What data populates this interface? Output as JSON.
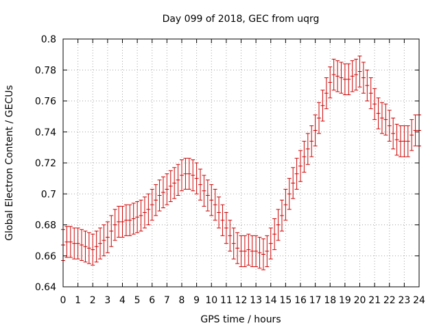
{
  "chart_data": {
    "type": "scatter",
    "title": "Day 099 of 2018, GEC from uqrg",
    "xlabel": "GPS time / hours",
    "ylabel": "Global Electron Content / GECUs",
    "xlim": [
      0,
      24
    ],
    "ylim": [
      0.64,
      0.8
    ],
    "grid": true,
    "x_ticks": [
      0,
      1,
      2,
      3,
      4,
      5,
      6,
      7,
      8,
      9,
      10,
      11,
      12,
      13,
      14,
      15,
      16,
      17,
      18,
      19,
      20,
      21,
      22,
      23,
      24
    ],
    "y_ticks": [
      0.64,
      0.66,
      0.68,
      0.7,
      0.72,
      0.74,
      0.76,
      0.78,
      0.8
    ],
    "y_tick_labels": [
      "0.64",
      "0.66",
      "0.68",
      "0.7",
      "0.72",
      "0.74",
      "0.76",
      "0.78",
      "0.8"
    ],
    "error": 0.01,
    "line_color": "#cc0000",
    "series": [
      {
        "name": "GEC",
        "x": [
          0,
          0.25,
          0.5,
          0.75,
          1,
          1.25,
          1.5,
          1.75,
          2,
          2.25,
          2.5,
          2.75,
          3,
          3.25,
          3.5,
          3.75,
          4,
          4.25,
          4.5,
          4.75,
          5,
          5.25,
          5.5,
          5.75,
          6,
          6.25,
          6.5,
          6.75,
          7,
          7.25,
          7.5,
          7.75,
          8,
          8.25,
          8.5,
          8.75,
          9,
          9.25,
          9.5,
          9.75,
          10,
          10.25,
          10.5,
          10.75,
          11,
          11.25,
          11.5,
          11.75,
          12,
          12.25,
          12.5,
          12.75,
          13,
          13.25,
          13.5,
          13.75,
          14,
          14.25,
          14.5,
          14.75,
          15,
          15.25,
          15.5,
          15.75,
          16,
          16.25,
          16.5,
          16.75,
          17,
          17.25,
          17.5,
          17.75,
          18,
          18.25,
          18.5,
          18.75,
          19,
          19.25,
          19.5,
          19.75,
          20,
          20.25,
          20.5,
          20.75,
          21,
          21.25,
          21.5,
          21.75,
          22,
          22.25,
          22.5,
          22.75,
          23,
          23.25,
          23.5,
          23.75,
          24
        ],
        "y": [
          0.667,
          0.669,
          0.669,
          0.668,
          0.668,
          0.667,
          0.666,
          0.665,
          0.664,
          0.666,
          0.668,
          0.67,
          0.672,
          0.676,
          0.68,
          0.682,
          0.682,
          0.683,
          0.683,
          0.684,
          0.685,
          0.686,
          0.688,
          0.69,
          0.693,
          0.696,
          0.699,
          0.701,
          0.703,
          0.705,
          0.707,
          0.709,
          0.712,
          0.713,
          0.713,
          0.712,
          0.71,
          0.706,
          0.702,
          0.699,
          0.696,
          0.693,
          0.688,
          0.683,
          0.678,
          0.673,
          0.668,
          0.665,
          0.663,
          0.663,
          0.664,
          0.663,
          0.663,
          0.662,
          0.661,
          0.663,
          0.668,
          0.674,
          0.68,
          0.686,
          0.693,
          0.7,
          0.707,
          0.713,
          0.718,
          0.724,
          0.729,
          0.734,
          0.741,
          0.749,
          0.757,
          0.765,
          0.772,
          0.777,
          0.776,
          0.775,
          0.774,
          0.774,
          0.776,
          0.777,
          0.779,
          0.775,
          0.77,
          0.765,
          0.758,
          0.752,
          0.749,
          0.748,
          0.744,
          0.739,
          0.735,
          0.734,
          0.734,
          0.734,
          0.738,
          0.741,
          0.741
        ]
      }
    ]
  }
}
